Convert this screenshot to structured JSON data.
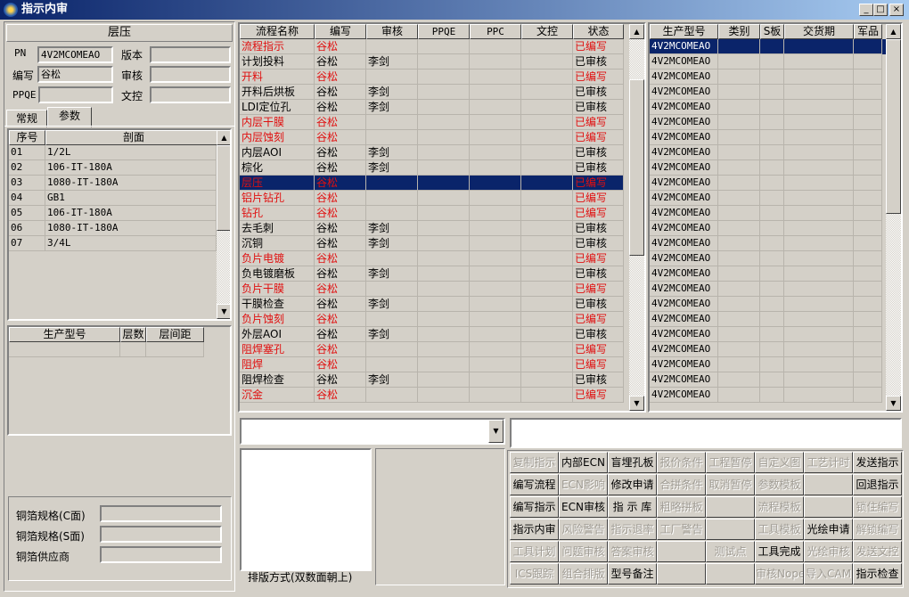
{
  "window": {
    "title": "指示内审",
    "min": "_",
    "max": "□",
    "close": "×"
  },
  "left": {
    "section_title": "层压",
    "pn_label": "PN",
    "pn_value": "4V2MCOMEAO",
    "version_label": "版本",
    "version_value": "",
    "writer_label": "编写",
    "writer_value": "谷松",
    "review_label": "审核",
    "review_value": "",
    "ppqe_label": "PPQE",
    "ppqe_value": "",
    "doc_label": "文控",
    "doc_value": "",
    "tabs": [
      {
        "label": "常规"
      },
      {
        "label": "参数"
      }
    ],
    "active_tab": "参数",
    "stack_table": {
      "headers": [
        "序号",
        "剖面"
      ],
      "rows": [
        [
          "01",
          "1/2L"
        ],
        [
          "02",
          "106-IT-180A"
        ],
        [
          "03",
          "1080-IT-180A"
        ],
        [
          "04",
          "GB1"
        ],
        [
          "05",
          "106-IT-180A"
        ],
        [
          "06",
          "1080-IT-180A"
        ],
        [
          "07",
          "3/4L"
        ]
      ]
    },
    "model_table": {
      "headers": [
        "生产型号",
        "层数",
        "层间距"
      ]
    },
    "copper": [
      {
        "label": "铜箔规格(C面)",
        "value": ""
      },
      {
        "label": "铜箔规格(S面)",
        "value": ""
      },
      {
        "label": "铜箔供应商",
        "value": ""
      }
    ]
  },
  "flow_table": {
    "headers": [
      "流程名称",
      "编写",
      "审核",
      "PPQE",
      "PPC",
      "文控",
      "状态"
    ],
    "selected_index": 9,
    "rows": [
      [
        "流程指示",
        "谷松",
        "",
        "",
        "",
        "",
        "已编写"
      ],
      [
        "计划投料",
        "谷松",
        "李剑",
        "",
        "",
        "",
        "已审核"
      ],
      [
        "开料",
        "谷松",
        "",
        "",
        "",
        "",
        "已编写"
      ],
      [
        "开料后烘板",
        "谷松",
        "李剑",
        "",
        "",
        "",
        "已审核"
      ],
      [
        "LDI定位孔",
        "谷松",
        "李剑",
        "",
        "",
        "",
        "已审核"
      ],
      [
        "内层干膜",
        "谷松",
        "",
        "",
        "",
        "",
        "已编写"
      ],
      [
        "内层蚀刻",
        "谷松",
        "",
        "",
        "",
        "",
        "已编写"
      ],
      [
        "内层AOI",
        "谷松",
        "李剑",
        "",
        "",
        "",
        "已审核"
      ],
      [
        "棕化",
        "谷松",
        "李剑",
        "",
        "",
        "",
        "已审核"
      ],
      [
        "层压",
        "谷松",
        "",
        "",
        "",
        "",
        "已编写"
      ],
      [
        "铝片钻孔",
        "谷松",
        "",
        "",
        "",
        "",
        "已编写"
      ],
      [
        "钻孔",
        "谷松",
        "",
        "",
        "",
        "",
        "已编写"
      ],
      [
        "去毛刺",
        "谷松",
        "李剑",
        "",
        "",
        "",
        "已审核"
      ],
      [
        "沉铜",
        "谷松",
        "李剑",
        "",
        "",
        "",
        "已审核"
      ],
      [
        "负片电镀",
        "谷松",
        "",
        "",
        "",
        "",
        "已编写"
      ],
      [
        "负电镀磨板",
        "谷松",
        "李剑",
        "",
        "",
        "",
        "已审核"
      ],
      [
        "负片干膜",
        "谷松",
        "",
        "",
        "",
        "",
        "已编写"
      ],
      [
        "干膜检查",
        "谷松",
        "李剑",
        "",
        "",
        "",
        "已审核"
      ],
      [
        "负片蚀刻",
        "谷松",
        "",
        "",
        "",
        "",
        "已编写"
      ],
      [
        "外层AOI",
        "谷松",
        "李剑",
        "",
        "",
        "",
        "已审核"
      ],
      [
        "阻焊塞孔",
        "谷松",
        "",
        "",
        "",
        "",
        "已编写"
      ],
      [
        "阻焊",
        "谷松",
        "",
        "",
        "",
        "",
        "已编写"
      ],
      [
        "阻焊检查",
        "谷松",
        "李剑",
        "",
        "",
        "",
        "已审核"
      ],
      [
        "沉金",
        "谷松",
        "",
        "",
        "",
        "",
        "已编写"
      ]
    ]
  },
  "model_list": {
    "headers": [
      "生产型号",
      "类别",
      "S板",
      "交货期",
      "军品"
    ],
    "selected_index": 0,
    "rows": [
      "4V2MCOMEAO",
      "4V2MCOMEAO",
      "4V2MCOMEAO",
      "4V2MCOMEAO",
      "4V2MCOMEAO",
      "4V2MCOMEAO",
      "4V2MCOMEAO",
      "4V2MCOMEAO",
      "4V2MCOMEAO",
      "4V2MCOMEAO",
      "4V2MCOMEAO",
      "4V2MCOMEAO",
      "4V2MCOMEAO",
      "4V2MCOMEAO",
      "4V2MCOMEAO",
      "4V2MCOMEAO",
      "4V2MCOMEAO",
      "4V2MCOMEAO",
      "4V2MCOMEAO",
      "4V2MCOMEAO",
      "4V2MCOMEAO",
      "4V2MCOMEAO",
      "4V2MCOMEAO",
      "4V2MCOMEAO"
    ]
  },
  "bottom": {
    "dropdown_value": "",
    "text_value": "",
    "layout_label": "排版方式(双数面朝上)"
  },
  "colors": {
    "written": "#e01010",
    "reviewed": "#000000",
    "selection": "#0a246a"
  },
  "buttons": [
    [
      {
        "label": "复制指示",
        "enabled": false
      },
      {
        "label": "内部ECN",
        "enabled": true
      },
      {
        "label": "盲埋孔板",
        "enabled": true
      },
      {
        "label": "报价条件",
        "enabled": false
      },
      {
        "label": "工程暂停",
        "enabled": false
      },
      {
        "label": "自定义图",
        "enabled": false
      },
      {
        "label": "工艺计时",
        "enabled": false
      },
      {
        "label": "发送指示",
        "enabled": true
      }
    ],
    [
      {
        "label": "编写流程",
        "enabled": true
      },
      {
        "label": "ECN影响",
        "enabled": false
      },
      {
        "label": "修改申请",
        "enabled": true
      },
      {
        "label": "合拼条件",
        "enabled": false
      },
      {
        "label": "取消暂停",
        "enabled": false
      },
      {
        "label": "参数模板",
        "enabled": false
      },
      {
        "label": "",
        "enabled": false
      },
      {
        "label": "回退指示",
        "enabled": true
      }
    ],
    [
      {
        "label": "编写指示",
        "enabled": true
      },
      {
        "label": "ECN审核",
        "enabled": true
      },
      {
        "label": "指 示 库",
        "enabled": true
      },
      {
        "label": "粗略拼板",
        "enabled": false
      },
      {
        "label": "",
        "enabled": false
      },
      {
        "label": "流程模板",
        "enabled": false
      },
      {
        "label": "",
        "enabled": false
      },
      {
        "label": "锁住编写",
        "enabled": false
      }
    ],
    [
      {
        "label": "指示内审",
        "enabled": true
      },
      {
        "label": "风险警告",
        "enabled": false
      },
      {
        "label": "指示退率",
        "enabled": false
      },
      {
        "label": "工厂警告",
        "enabled": false
      },
      {
        "label": "",
        "enabled": false
      },
      {
        "label": "工具模板",
        "enabled": false
      },
      {
        "label": "光绘申请",
        "enabled": true
      },
      {
        "label": "解锁编写",
        "enabled": false
      }
    ],
    [
      {
        "label": "工具计划",
        "enabled": false
      },
      {
        "label": "问题审核",
        "enabled": false
      },
      {
        "label": "答案审核",
        "enabled": false
      },
      {
        "label": "",
        "enabled": false
      },
      {
        "label": "测试点",
        "enabled": false
      },
      {
        "label": "工具完成",
        "enabled": true
      },
      {
        "label": "光绘审核",
        "enabled": false
      },
      {
        "label": "发送文控",
        "enabled": false
      }
    ],
    [
      {
        "label": "ICS跟踪",
        "enabled": false
      },
      {
        "label": "组合排版",
        "enabled": false
      },
      {
        "label": "型号备注",
        "enabled": true
      },
      {
        "label": "",
        "enabled": false
      },
      {
        "label": "",
        "enabled": false
      },
      {
        "label": "审核Nope",
        "enabled": false
      },
      {
        "label": "导入CAM",
        "enabled": false
      },
      {
        "label": "指示检查",
        "enabled": true
      }
    ]
  ]
}
